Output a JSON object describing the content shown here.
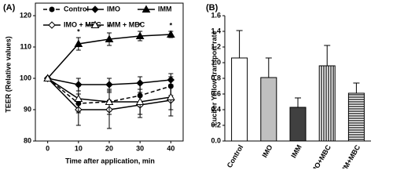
{
  "chart_data": [
    {
      "type": "line",
      "panel": "(A)",
      "ylabel": "TEER (Relative values)",
      "xlabel": "Time after application, min",
      "x": [
        0,
        10,
        20,
        30,
        40
      ],
      "xlim": [
        -4,
        44
      ],
      "xticks": [
        0,
        10,
        20,
        30,
        40
      ],
      "ylim": [
        80,
        124
      ],
      "yticks": [
        80,
        90,
        100,
        110,
        120
      ],
      "series": [
        {
          "name": "Control",
          "color": "#000000",
          "dash": true,
          "marker": "circle",
          "filled": true,
          "values": [
            100,
            92,
            92.5,
            94.5,
            97.5
          ],
          "errors": [
            0,
            3,
            3,
            3.5,
            3
          ]
        },
        {
          "name": "IMO",
          "color": "#000000",
          "dash": false,
          "marker": "diamond",
          "filled": true,
          "values": [
            100,
            98,
            98,
            98.5,
            99.5
          ],
          "errors": [
            0,
            2,
            2,
            2,
            2
          ]
        },
        {
          "name": "IMM",
          "color": "#000000",
          "dash": false,
          "marker": "triangle",
          "filled": true,
          "values": [
            100,
            111,
            112.5,
            113.5,
            114
          ],
          "errors": [
            0,
            2,
            2,
            1.5,
            1
          ]
        },
        {
          "name": "IMO + MBC",
          "color": "#000000",
          "dash": false,
          "marker": "diamond",
          "filled": false,
          "values": [
            100,
            90,
            90,
            91.5,
            93
          ],
          "errors": [
            0,
            5,
            6,
            4,
            5
          ]
        },
        {
          "name": "IMM + MBC",
          "color": "#000000",
          "dash": false,
          "marker": "triangle",
          "filled": false,
          "values": [
            100,
            93.5,
            92.5,
            92.5,
            94
          ],
          "errors": [
            0,
            4,
            4,
            4,
            4
          ]
        }
      ],
      "annotations": [
        "*",
        "*",
        "*",
        "*"
      ]
    },
    {
      "type": "bar",
      "panel": "(B)",
      "ylabel": "Lucifer Yellow transport rate",
      "categories": [
        "Control",
        "IMO",
        "IMM",
        "IMO+MBC",
        "IMM+MBC"
      ],
      "values": [
        1.06,
        0.81,
        0.43,
        0.96,
        0.61
      ],
      "errors": [
        0.35,
        0.25,
        0.12,
        0.26,
        0.13
      ],
      "colors": [
        "#ffffff",
        "#c0c0c0",
        "#404040",
        "#ffffff",
        "#ffffff"
      ],
      "hatch": [
        null,
        null,
        null,
        "vertical",
        "horizontal"
      ],
      "ylim": [
        0,
        1.6
      ],
      "yticks": [
        {
          "value": 0,
          "label": "0.0"
        },
        0.2,
        0.4,
        0.6,
        0.8,
        {
          "value": 1,
          "label": "1.0"
        },
        1.2,
        1.4,
        1.6
      ]
    }
  ]
}
